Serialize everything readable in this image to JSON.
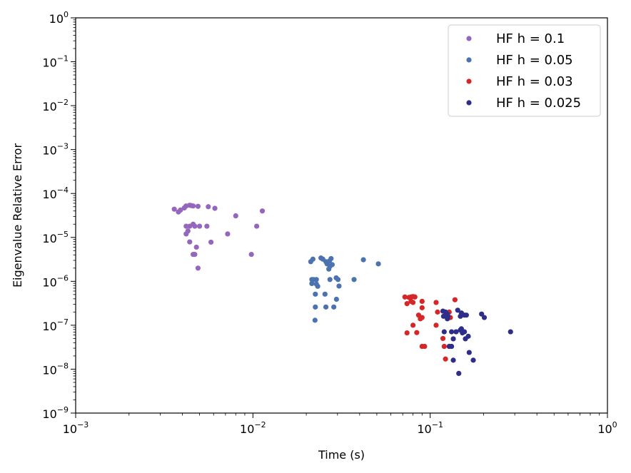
{
  "chart_data": {
    "type": "scatter",
    "xlabel": "Time (s)",
    "ylabel": "Eigenvalue Relative Error",
    "xscale": "log",
    "yscale": "log",
    "xlim": [
      0.001,
      1
    ],
    "ylim": [
      1e-09,
      1
    ],
    "grid": false,
    "legend_position": "top-right",
    "x_ticks": [
      {
        "value": 0.001,
        "base": "10",
        "exp": "−3"
      },
      {
        "value": 0.01,
        "base": "10",
        "exp": "−2"
      },
      {
        "value": 0.1,
        "base": "10",
        "exp": "−1"
      },
      {
        "value": 1,
        "base": "10",
        "exp": "0"
      }
    ],
    "y_ticks": [
      {
        "value": 1e-09,
        "base": "10",
        "exp": "−9"
      },
      {
        "value": 1e-08,
        "base": "10",
        "exp": "−8"
      },
      {
        "value": 1e-07,
        "base": "10",
        "exp": "−7"
      },
      {
        "value": 1e-06,
        "base": "10",
        "exp": "−6"
      },
      {
        "value": 1e-05,
        "base": "10",
        "exp": "−5"
      },
      {
        "value": 0.0001,
        "base": "10",
        "exp": "−4"
      },
      {
        "value": 0.001,
        "base": "10",
        "exp": "−3"
      },
      {
        "value": 0.01,
        "base": "10",
        "exp": "−2"
      },
      {
        "value": 0.1,
        "base": "10",
        "exp": "−1"
      },
      {
        "value": 1,
        "base": "10",
        "exp": "0"
      }
    ],
    "series": [
      {
        "name": "HF h = 0.1",
        "color": "#9467bd",
        "points": [
          [
            0.0036,
            4.4e-05
          ],
          [
            0.0038,
            3.8e-05
          ],
          [
            0.0039,
            4.2e-05
          ],
          [
            0.0041,
            4.7e-05
          ],
          [
            0.0042,
            5.2e-05
          ],
          [
            0.0044,
            5.4e-05
          ],
          [
            0.0045,
            5.3e-05
          ],
          [
            0.0046,
            5.2e-05
          ],
          [
            0.0049,
            5.1e-05
          ],
          [
            0.0056,
            5e-05
          ],
          [
            0.0061,
            4.6e-05
          ],
          [
            0.0042,
            1.8e-05
          ],
          [
            0.0044,
            1.8e-05
          ],
          [
            0.0046,
            2e-05
          ],
          [
            0.0047,
            1.8e-05
          ],
          [
            0.005,
            1.8e-05
          ],
          [
            0.0055,
            1.8e-05
          ],
          [
            0.0042,
            1.2e-05
          ],
          [
            0.0043,
            1.4e-05
          ],
          [
            0.0044,
            7.9e-06
          ],
          [
            0.0046,
            4.1e-06
          ],
          [
            0.0047,
            4.1e-06
          ],
          [
            0.0048,
            6e-06
          ],
          [
            0.0049,
            2e-06
          ],
          [
            0.0058,
            7.8e-06
          ],
          [
            0.0072,
            1.2e-05
          ],
          [
            0.008,
            3.1e-05
          ],
          [
            0.0098,
            4.1e-06
          ],
          [
            0.0105,
            1.8e-05
          ],
          [
            0.0113,
            4e-05
          ]
        ]
      },
      {
        "name": "HF h = 0.05",
        "color": "#4c72b0",
        "points": [
          [
            0.0212,
            2.8e-06
          ],
          [
            0.0218,
            3.2e-06
          ],
          [
            0.0242,
            3.4e-06
          ],
          [
            0.0248,
            3.2e-06
          ],
          [
            0.0258,
            2.8e-06
          ],
          [
            0.0262,
            2.5e-06
          ],
          [
            0.027,
            2.9e-06
          ],
          [
            0.0272,
            2.2e-06
          ],
          [
            0.0276,
            3.3e-06
          ],
          [
            0.028,
            2.4e-06
          ],
          [
            0.0268,
            1.9e-06
          ],
          [
            0.0215,
            1.1e-06
          ],
          [
            0.022,
            1.1e-06
          ],
          [
            0.0228,
            1.1e-06
          ],
          [
            0.0215,
            8.9e-07
          ],
          [
            0.0228,
            8.7e-07
          ],
          [
            0.0232,
            7.7e-07
          ],
          [
            0.0272,
            1.1e-06
          ],
          [
            0.0295,
            1.2e-06
          ],
          [
            0.0302,
            1.1e-06
          ],
          [
            0.0306,
            7.8e-07
          ],
          [
            0.0225,
            5.1e-07
          ],
          [
            0.0255,
            5.1e-07
          ],
          [
            0.0225,
            2.6e-07
          ],
          [
            0.0258,
            2.6e-07
          ],
          [
            0.0286,
            2.6e-07
          ],
          [
            0.0296,
            3.9e-07
          ],
          [
            0.0224,
            1.3e-07
          ],
          [
            0.0372,
            1.1e-06
          ],
          [
            0.042,
            3.1e-06
          ],
          [
            0.051,
            2.5e-06
          ]
        ]
      },
      {
        "name": "HF h = 0.03",
        "color": "#d62728",
        "points": [
          [
            0.072,
            4.4e-07
          ],
          [
            0.076,
            4.3e-07
          ],
          [
            0.078,
            4.4e-07
          ],
          [
            0.08,
            4.5e-07
          ],
          [
            0.082,
            4.4e-07
          ],
          [
            0.074,
            3.1e-07
          ],
          [
            0.078,
            3.5e-07
          ],
          [
            0.08,
            3.3e-07
          ],
          [
            0.09,
            3.5e-07
          ],
          [
            0.108,
            3.3e-07
          ],
          [
            0.086,
            1.7e-07
          ],
          [
            0.088,
            1.4e-07
          ],
          [
            0.09,
            1.5e-07
          ],
          [
            0.09,
            2.5e-07
          ],
          [
            0.108,
            1e-07
          ],
          [
            0.08,
            1e-07
          ],
          [
            0.074,
            6.7e-08
          ],
          [
            0.084,
            6.8e-08
          ],
          [
            0.09,
            3.3e-08
          ],
          [
            0.093,
            3.3e-08
          ],
          [
            0.118,
            5e-08
          ],
          [
            0.12,
            3.3e-08
          ],
          [
            0.122,
            1.7e-08
          ],
          [
            0.13,
            1.5e-07
          ],
          [
            0.138,
            3.8e-07
          ],
          [
            0.128,
            2e-07
          ],
          [
            0.11,
            2e-07
          ]
        ]
      },
      {
        "name": "HF h = 0.025",
        "color": "#2e2e8a",
        "points": [
          [
            0.118,
            2.1e-07
          ],
          [
            0.122,
            2e-07
          ],
          [
            0.125,
            1.8e-07
          ],
          [
            0.119,
            1.6e-07
          ],
          [
            0.126,
            1.6e-07
          ],
          [
            0.143,
            2.2e-07
          ],
          [
            0.15,
            1.9e-07
          ],
          [
            0.156,
            1.7e-07
          ],
          [
            0.16,
            1.7e-07
          ],
          [
            0.148,
            1.6e-07
          ],
          [
            0.12,
            7.1e-08
          ],
          [
            0.132,
            7.1e-08
          ],
          [
            0.14,
            7.1e-08
          ],
          [
            0.148,
            7.8e-08
          ],
          [
            0.152,
            6.7e-08
          ],
          [
            0.156,
            7.1e-08
          ],
          [
            0.164,
            5.6e-08
          ],
          [
            0.158,
            4.9e-08
          ],
          [
            0.135,
            4.9e-08
          ],
          [
            0.128,
            3.3e-08
          ],
          [
            0.132,
            3.3e-08
          ],
          [
            0.166,
            2.4e-08
          ],
          [
            0.135,
            1.6e-08
          ],
          [
            0.175,
            1.6e-08
          ],
          [
            0.145,
            8e-09
          ],
          [
            0.195,
            1.8e-07
          ],
          [
            0.202,
            1.5e-07
          ],
          [
            0.284,
            7.1e-08
          ],
          [
            0.15,
            8.3e-08
          ],
          [
            0.125,
            1.4e-07
          ]
        ]
      }
    ]
  }
}
